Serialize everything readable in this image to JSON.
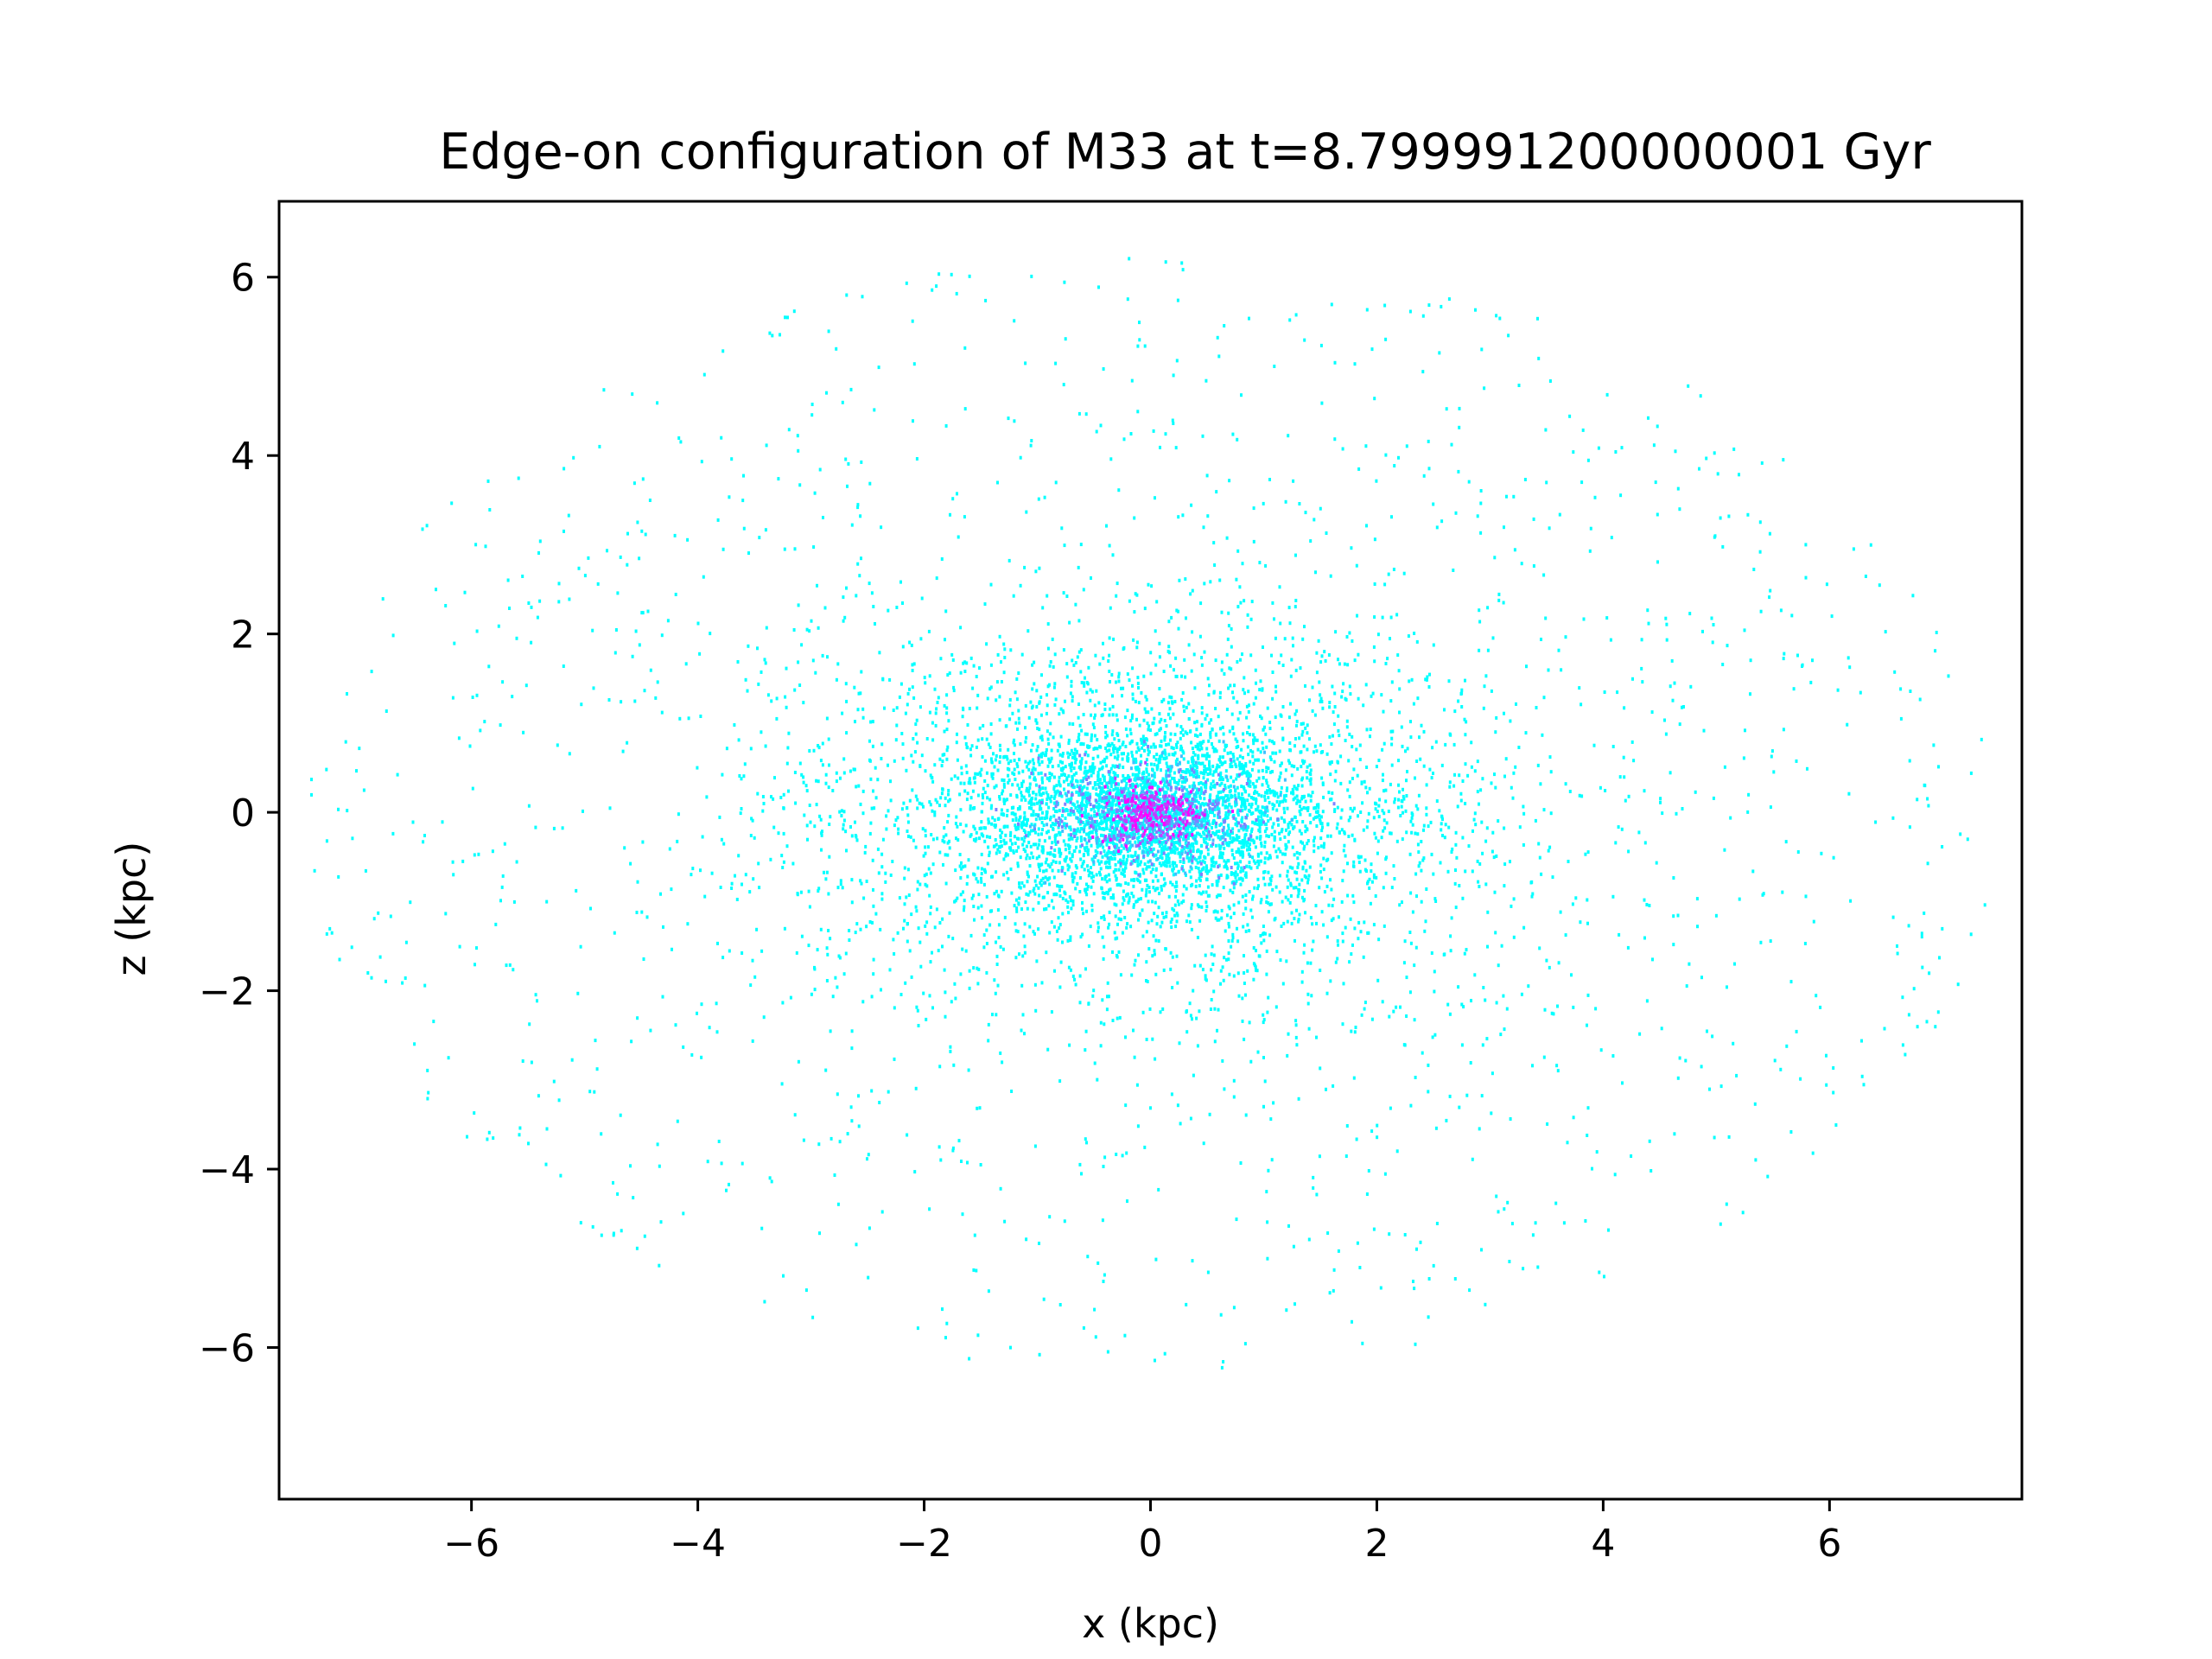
{
  "chart_data": {
    "type": "heatmap",
    "title": "Edge-on configuration of M33 at t=8.799991200000001 Gyr",
    "xlabel": "x (kpc)",
    "ylabel": "z (kpc)",
    "xlim": [
      -7.7,
      7.7
    ],
    "ylim": [
      -7.7,
      6.85
    ],
    "xticks": [
      -6,
      -4,
      -2,
      0,
      2,
      4,
      6
    ],
    "yticks": [
      -6,
      -4,
      -2,
      0,
      2,
      4,
      6
    ],
    "xtick_labels": [
      "−6",
      "−4",
      "−2",
      "0",
      "2",
      "4",
      "6"
    ],
    "ytick_labels": [
      "−6",
      "−4",
      "−2",
      "0",
      "2",
      "4",
      "6"
    ],
    "grid": false,
    "colormap": "cool",
    "colors": {
      "low": "#00ffff",
      "high": "#ff00ff",
      "axes": "#000000"
    },
    "distribution": {
      "center": [
        0,
        0
      ],
      "core_extent_kpc": {
        "x": 0.7,
        "z": 0.45
      },
      "halo_extent_kpc": {
        "x": 7.5,
        "z": 6.8
      }
    }
  }
}
